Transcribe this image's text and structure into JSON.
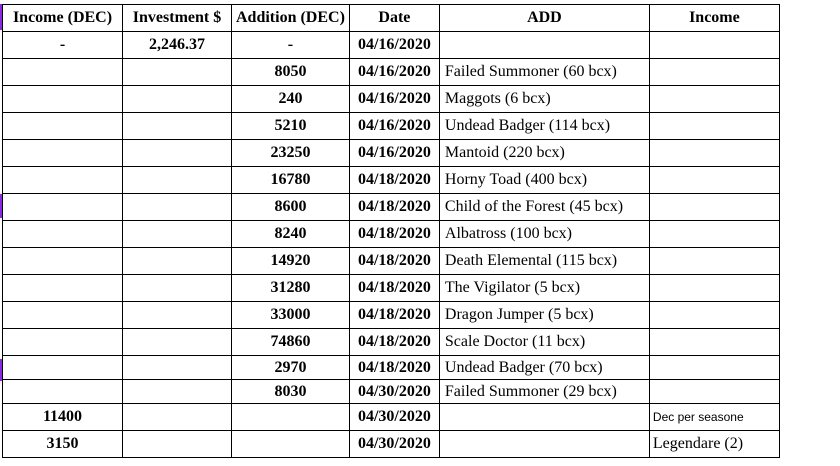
{
  "headers": [
    "Income (DEC)",
    "Investment $",
    "Addition (DEC)",
    "Date",
    "ADD",
    "Income"
  ],
  "rows": [
    {
      "income": "-",
      "investment": "2,246.37",
      "addition": "-",
      "date": "04/16/2020",
      "add": "",
      "income2": ""
    },
    {
      "income": "",
      "investment": "",
      "addition": "8050",
      "date": "04/16/2020",
      "add": "Failed Summoner (60 bcx)",
      "income2": ""
    },
    {
      "income": "",
      "investment": "",
      "addition": "240",
      "date": "04/16/2020",
      "add": "Maggots (6 bcx)",
      "income2": ""
    },
    {
      "income": "",
      "investment": "",
      "addition": "5210",
      "date": "04/16/2020",
      "add": "Undead Badger (114 bcx)",
      "income2": ""
    },
    {
      "income": "",
      "investment": "",
      "addition": "23250",
      "date": "04/16/2020",
      "add": "Mantoid (220 bcx)",
      "income2": ""
    },
    {
      "income": "",
      "investment": "",
      "addition": "16780",
      "date": "04/18/2020",
      "add": "Horny Toad (400 bcx)",
      "income2": ""
    },
    {
      "income": "",
      "investment": "",
      "addition": "8600",
      "date": "04/18/2020",
      "add": "Child of the Forest (45 bcx)",
      "income2": ""
    },
    {
      "income": "",
      "investment": "",
      "addition": "8240",
      "date": "04/18/2020",
      "add": "Albatross (100 bcx)",
      "income2": ""
    },
    {
      "income": "",
      "investment": "",
      "addition": "14920",
      "date": "04/18/2020",
      "add": "Death Elemental (115 bcx)",
      "income2": ""
    },
    {
      "income": "",
      "investment": "",
      "addition": "31280",
      "date": "04/18/2020",
      "add": "The Vigilator (5 bcx)",
      "income2": ""
    },
    {
      "income": "",
      "investment": "",
      "addition": "33000",
      "date": "04/18/2020",
      "add": "Dragon Jumper (5 bcx)",
      "income2": ""
    },
    {
      "income": "",
      "investment": "",
      "addition": "74860",
      "date": "04/18/2020",
      "add": "Scale Doctor (11 bcx)",
      "income2": ""
    },
    {
      "income": "",
      "investment": "",
      "addition": "2970",
      "date": "04/18/2020",
      "add": "Undead Badger (70 bcx)",
      "income2": ""
    },
    {
      "income": "",
      "investment": "",
      "addition": "8030",
      "date": "04/30/2020",
      "add": "Failed Summoner (29 bcx)",
      "income2": ""
    },
    {
      "income": "11400",
      "investment": "",
      "addition": "",
      "date": "04/30/2020",
      "add": "",
      "income2": "Dec per seasone"
    },
    {
      "income": "3150",
      "investment": "",
      "addition": "",
      "date": "04/30/2020",
      "add": "",
      "income2": "Legendare (2)"
    }
  ],
  "colors": {
    "row_marker": "#8a2be2",
    "grid": "#000000"
  }
}
